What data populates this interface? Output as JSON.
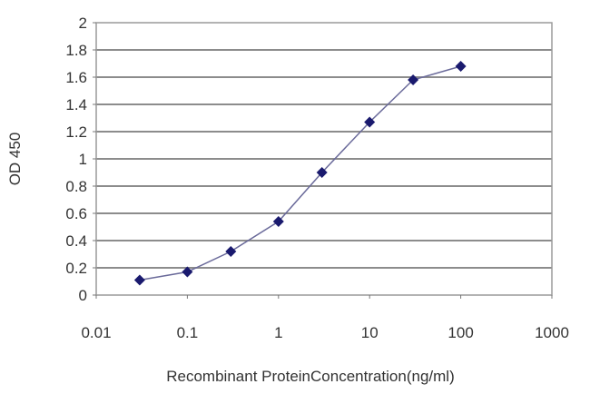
{
  "chart_data": {
    "type": "line",
    "title": "",
    "xlabel": "Recombinant ProteinConcentration(ng/ml)",
    "ylabel": "OD 450",
    "xscale": "log",
    "xlim": [
      0.01,
      1000
    ],
    "ylim": [
      0,
      2
    ],
    "xticks": [
      "0.01",
      "0.1",
      "1",
      "10",
      "100",
      "1000"
    ],
    "yticks": [
      "0",
      "0.2",
      "0.4",
      "0.6",
      "0.8",
      "1",
      "1.2",
      "1.4",
      "1.6",
      "1.8",
      "2"
    ],
    "grid": "horizontal",
    "legend": "none",
    "series": [
      {
        "x": [
          0.03,
          0.1,
          0.3,
          1,
          3,
          10,
          30,
          100
        ],
        "y": [
          0.11,
          0.17,
          0.32,
          0.54,
          0.9,
          1.27,
          1.58,
          1.68
        ],
        "color": "#1a1a6e",
        "marker": "diamond"
      }
    ],
    "grid_color": "#8c8c8c"
  }
}
